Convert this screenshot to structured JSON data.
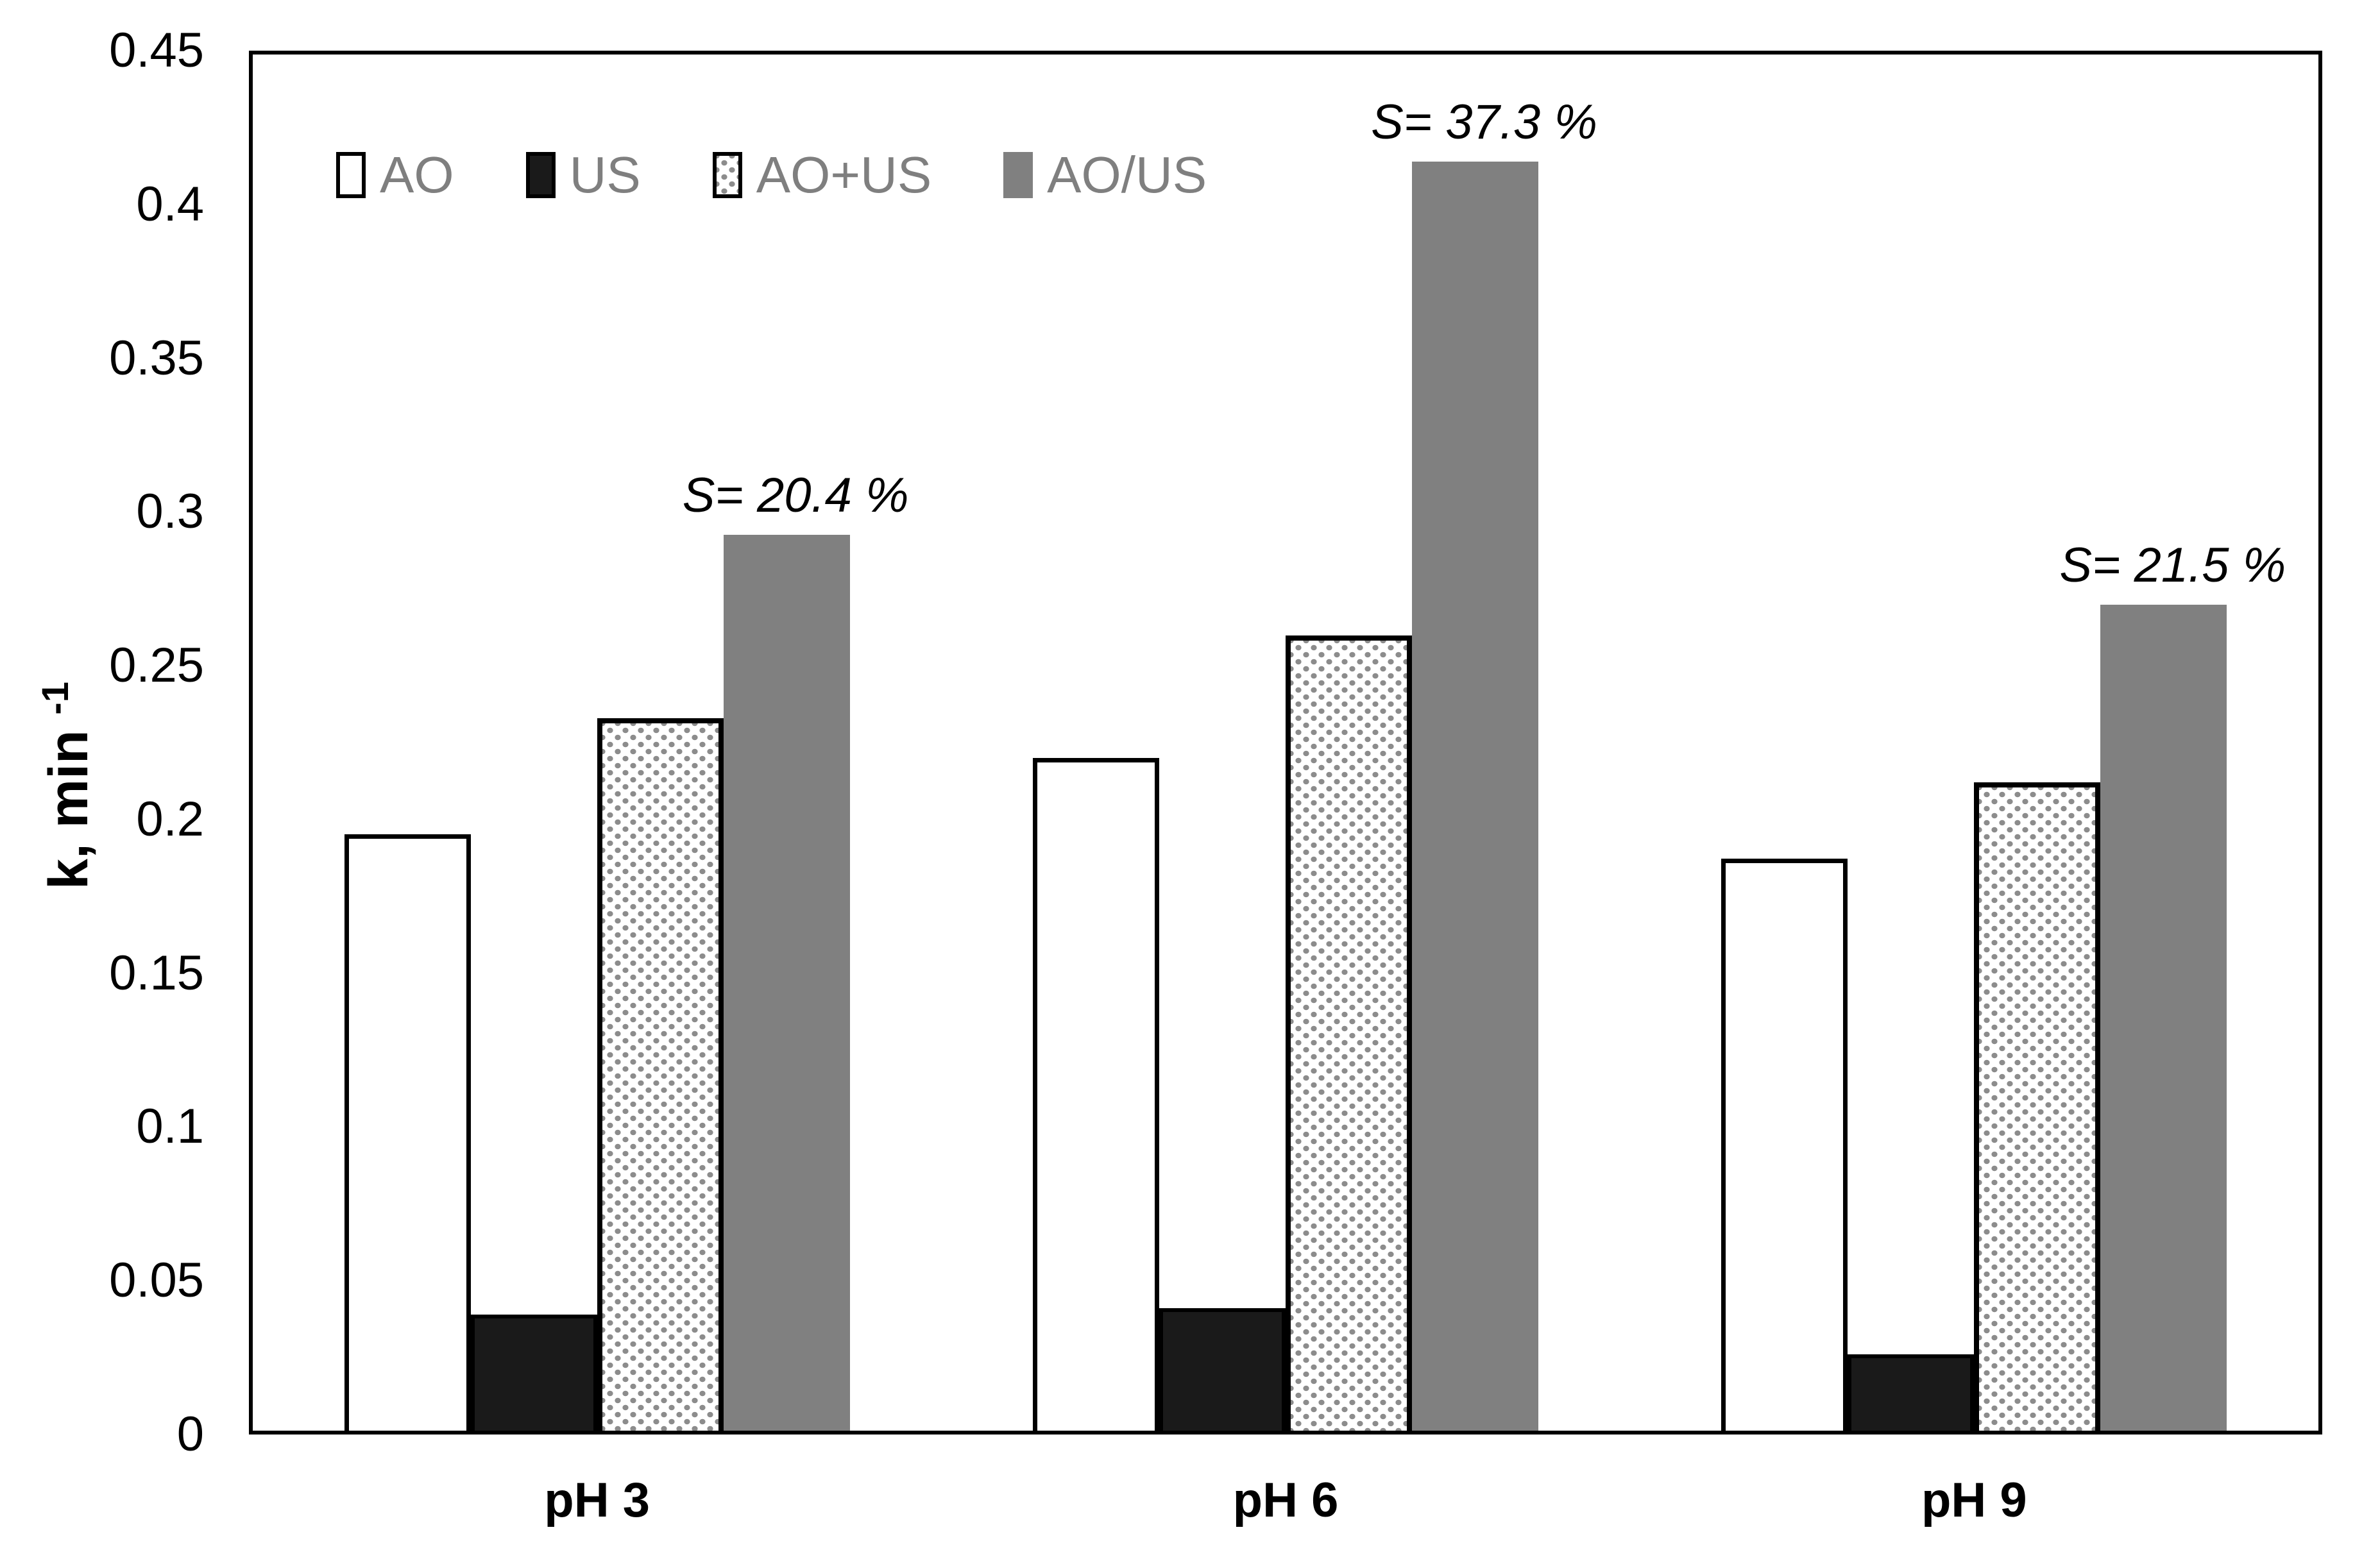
{
  "chart_data": {
    "type": "bar",
    "title": "",
    "ylabel": "k, min",
    "ylabel_superscript": "-1",
    "xlabel": "",
    "ylim": [
      0,
      0.45
    ],
    "ytick_step": 0.05,
    "yticks": [
      "0",
      "0.05",
      "0.1",
      "0.15",
      "0.2",
      "0.25",
      "0.3",
      "0.35",
      "0.4",
      "0.45"
    ],
    "grid": false,
    "legend_position": "top-left-inside",
    "categories": [
      "pH 3",
      "pH 6",
      "pH 9"
    ],
    "series": [
      {
        "name": "AO",
        "style": "white-outline",
        "fill": "#ffffff",
        "border": "#000000",
        "values": [
          0.195,
          0.22,
          0.187
        ]
      },
      {
        "name": "US",
        "style": "solid-dark",
        "fill": "#1a1a1a",
        "border": "#000000",
        "values": [
          0.038,
          0.04,
          0.025
        ]
      },
      {
        "name": "AO+US",
        "style": "dotted",
        "fill": "#8c8c8c dots on #ffffff",
        "border": "#000000",
        "values": [
          0.233,
          0.26,
          0.212
        ]
      },
      {
        "name": "AO/US",
        "style": "solid-gray",
        "fill": "#808080",
        "border": "none",
        "values": [
          0.293,
          0.415,
          0.27
        ]
      }
    ],
    "annotations": [
      {
        "text": "S= 20.4 %",
        "category": "pH 3",
        "above_series": "AO/US"
      },
      {
        "text": "S= 37.3 %",
        "category": "pH 6",
        "above_series": "AO/US"
      },
      {
        "text": "S= 21.5 %",
        "category": "pH 9",
        "above_series": "AO/US"
      }
    ]
  },
  "colors": {
    "background": "#ffffff",
    "axis": "#000000",
    "bar_dark": "#1a1a1a",
    "bar_gray": "#808080",
    "dot_pattern": "#8c8c8c",
    "legend_text": "#7f7f7f",
    "annotation_text": "#000000"
  }
}
